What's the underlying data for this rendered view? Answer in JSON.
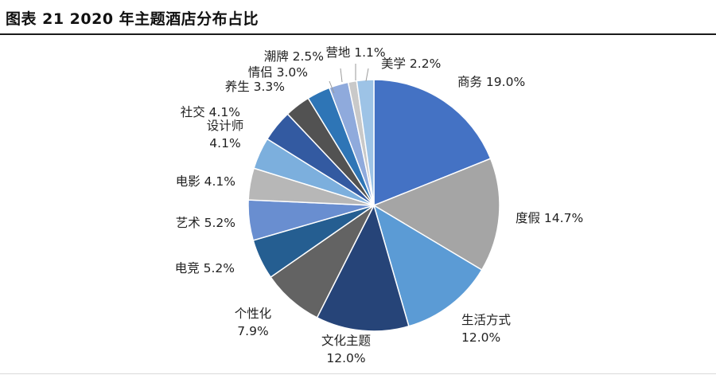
{
  "title": "图表 21 2020 年主题酒店分布占比",
  "chart_data": {
    "type": "pie",
    "title": "图表 21 2020 年主题酒店分布占比",
    "start_angle_deg": 0,
    "direction": "clockwise",
    "slices": [
      {
        "name": "商务",
        "value": 19.0,
        "pct_label": "19.0%",
        "color": "#4472C4",
        "label_lines": [
          "商务 19.0%"
        ]
      },
      {
        "name": "度假",
        "value": 14.7,
        "pct_label": "14.7%",
        "color": "#A5A5A5",
        "label_lines": [
          "度假 14.7%"
        ]
      },
      {
        "name": "生活方式",
        "value": 12.0,
        "pct_label": "12.0%",
        "color": "#5B9BD5",
        "label_lines": [
          "生活方式",
          "12.0%"
        ]
      },
      {
        "name": "文化主题",
        "value": 12.0,
        "pct_label": "12.0%",
        "color": "#264478",
        "label_lines": [
          "文化主题",
          "12.0%"
        ]
      },
      {
        "name": "个性化",
        "value": 7.9,
        "pct_label": "7.9%",
        "color": "#636363",
        "label_lines": [
          "个性化",
          "7.9%"
        ]
      },
      {
        "name": "电竞",
        "value": 5.2,
        "pct_label": "5.2%",
        "color": "#255E91",
        "label_lines": [
          "电竞 5.2%"
        ]
      },
      {
        "name": "艺术",
        "value": 5.2,
        "pct_label": "5.2%",
        "color": "#698ED0",
        "label_lines": [
          "艺术 5.2%"
        ]
      },
      {
        "name": "电影",
        "value": 4.1,
        "pct_label": "4.1%",
        "color": "#B7B7B7",
        "label_lines": [
          "电影 4.1%"
        ]
      },
      {
        "name": "设计师",
        "value": 4.1,
        "pct_label": "4.1%",
        "color": "#7CAFDD",
        "label_lines": [
          "设计师",
          "4.1%"
        ]
      },
      {
        "name": "社交",
        "value": 4.1,
        "pct_label": "4.1%",
        "color": "#335AA1",
        "label_lines": [
          "社交 4.1%"
        ]
      },
      {
        "name": "养生",
        "value": 3.3,
        "pct_label": "3.3%",
        "color": "#525252",
        "label_lines": [
          "养生 3.3%"
        ]
      },
      {
        "name": "情侣",
        "value": 3.0,
        "pct_label": "3.0%",
        "color": "#2E75B6",
        "label_lines": [
          "情侣 3.0%"
        ]
      },
      {
        "name": "潮牌",
        "value": 2.5,
        "pct_label": "2.5%",
        "color": "#8FAADC",
        "label_lines": [
          "潮牌 2.5%"
        ]
      },
      {
        "name": "营地",
        "value": 1.1,
        "pct_label": "1.1%",
        "color": "#C9C9C9",
        "label_lines": [
          "营地 1.1%"
        ]
      },
      {
        "name": "美学",
        "value": 2.2,
        "pct_label": "2.2%",
        "color": "#9DC3E6",
        "label_lines": [
          "美学 2.2%"
        ]
      }
    ]
  }
}
